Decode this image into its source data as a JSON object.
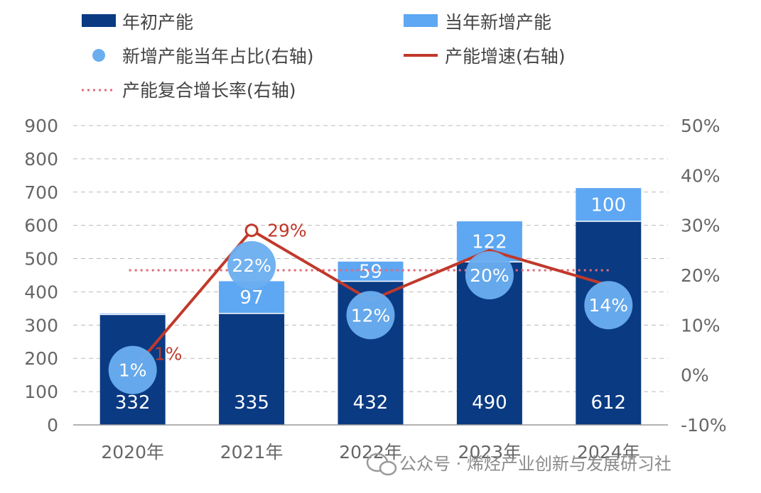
{
  "chart_data": {
    "type": "bar",
    "categories": [
      "2020年",
      "2021年",
      "2022年",
      "2023年",
      "2024年"
    ],
    "series": [
      {
        "name": "年初产能",
        "kind": "bar",
        "axis": "left",
        "values": [
          332,
          335,
          432,
          490,
          612
        ]
      },
      {
        "name": "当年新增产能",
        "kind": "bar",
        "axis": "left",
        "values": [
          3,
          97,
          59,
          122,
          100
        ]
      },
      {
        "name": "新增产能当年占比(右轴)",
        "kind": "scatter",
        "axis": "right",
        "values": [
          1,
          22,
          12,
          20,
          14
        ],
        "labels": [
          "1%",
          "22%",
          "12%",
          "20%",
          "14%"
        ]
      },
      {
        "name": "产能增速(右轴)",
        "kind": "line",
        "axis": "right",
        "values": [
          1,
          29,
          15,
          25,
          18
        ],
        "labels": [
          "1%",
          "29%",
          "",
          "",
          ""
        ]
      },
      {
        "name": "产能复合增长率(右轴)",
        "kind": "dotted-line",
        "axis": "right",
        "value": 21
      }
    ],
    "bar_labels": [
      "332",
      "335",
      "432",
      "490",
      "612"
    ],
    "added_labels": [
      "",
      "97",
      "59",
      "122",
      "100"
    ],
    "yleft": {
      "min": 0,
      "max": 900,
      "ticks": [
        "0",
        "100",
        "200",
        "300",
        "400",
        "500",
        "600",
        "700",
        "800",
        "900"
      ]
    },
    "yright": {
      "min": -10,
      "max": 50,
      "ticks": [
        "-10%",
        "0%",
        "10%",
        "20%",
        "30%",
        "40%",
        "50%"
      ]
    },
    "grid": true,
    "legend_position": "top",
    "colors": {
      "base": "#0a3a82",
      "added": "#5ea7f2",
      "share_dot": "#6aaef0",
      "growth": "#c0392b",
      "cagr": "#e26a78",
      "grid": "#bbbbbb"
    }
  },
  "legend": {
    "base": "年初产能",
    "added": "当年新增产能",
    "share": "新增产能当年占比(右轴)",
    "growth": "产能增速(右轴)",
    "cagr": "产能复合增长率(右轴)"
  },
  "watermark": {
    "text": "公众号 · 烯烃产业创新与发展研习社",
    "icon": "wechat-icon"
  }
}
